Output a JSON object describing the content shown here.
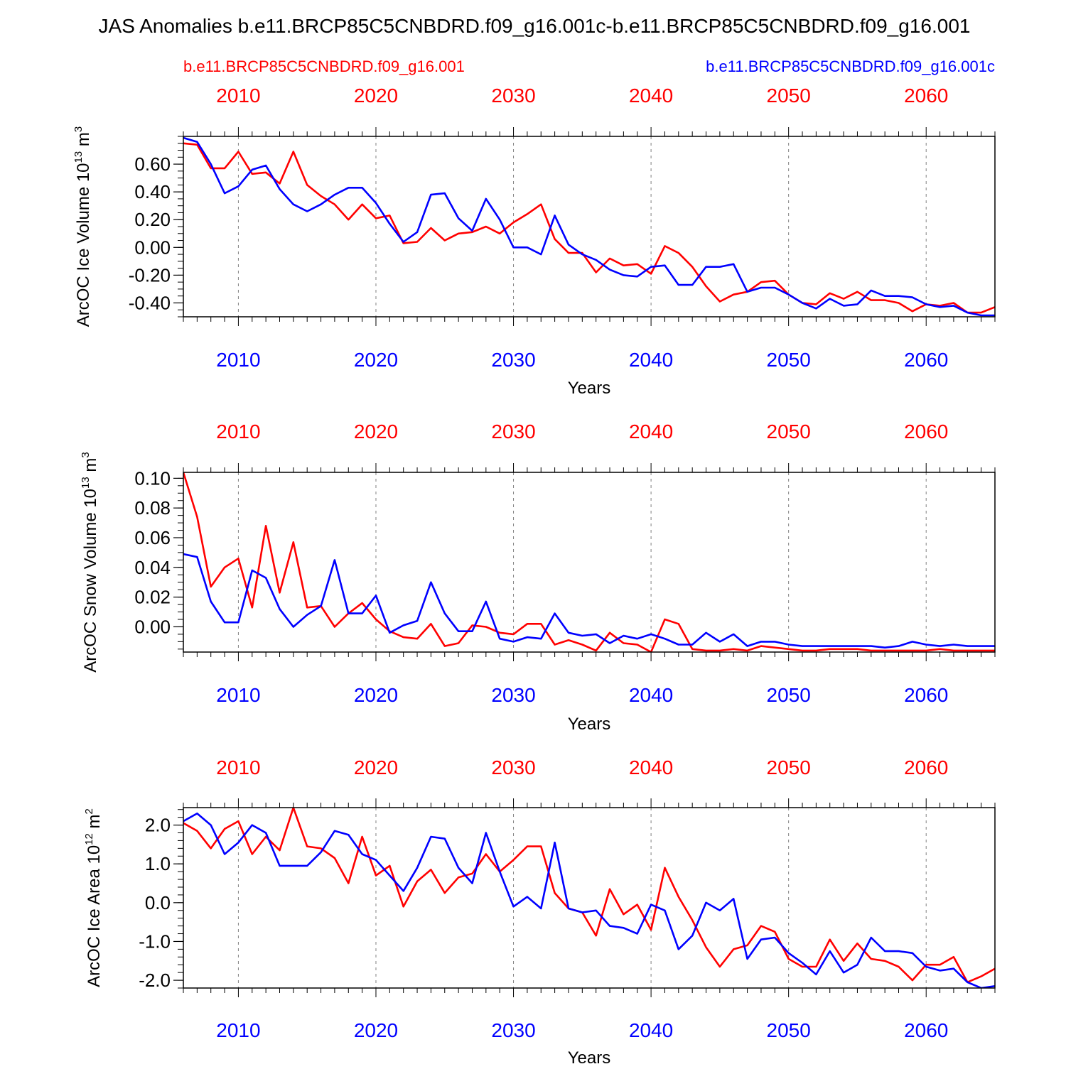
{
  "title": "JAS Anomalies b.e11.BRCP85C5CNBDRD.f09_g16.001c-b.e11.BRCP85C5CNBDRD.f09_g16.001",
  "legend": {
    "left": {
      "label": "b.e11.BRCP85C5CNBDRD.f09_g16.001",
      "color": "#ff0000"
    },
    "right": {
      "label": "b.e11.BRCP85C5CNBDRD.f09_g16.001c",
      "color": "#0000ff"
    }
  },
  "colors": {
    "series_a": "#ff0000",
    "series_b": "#0000ff",
    "axis": "#000000",
    "grid": "#808080"
  },
  "chart_data": [
    {
      "type": "line",
      "ylabel": "ArcOC Ice Volume 10",
      "ylabel_sup": "13",
      "ylabel_unit": " m",
      "ylabel_unit_sup": "3",
      "xlabel": "Years",
      "xlim": [
        2006,
        2065
      ],
      "ylim": [
        -0.5,
        0.8
      ],
      "yticks": [
        -0.4,
        -0.2,
        0.0,
        0.2,
        0.4,
        0.6
      ],
      "ytick_labels": [
        "-0.40",
        "-0.20",
        "0.00",
        "0.20",
        "0.40",
        "0.60"
      ],
      "ytick_minor_step": 0.05,
      "xticks": [
        2010,
        2020,
        2030,
        2040,
        2050,
        2060
      ],
      "xtick_labels": [
        "2010",
        "2020",
        "2030",
        "2040",
        "2050",
        "2060"
      ],
      "x": [
        2006,
        2007,
        2008,
        2009,
        2010,
        2011,
        2012,
        2013,
        2014,
        2015,
        2016,
        2017,
        2018,
        2019,
        2020,
        2021,
        2022,
        2023,
        2024,
        2025,
        2026,
        2027,
        2028,
        2029,
        2030,
        2031,
        2032,
        2033,
        2034,
        2035,
        2036,
        2037,
        2038,
        2039,
        2040,
        2041,
        2042,
        2043,
        2044,
        2045,
        2046,
        2047,
        2048,
        2049,
        2050,
        2051,
        2052,
        2053,
        2054,
        2055,
        2056,
        2057,
        2058,
        2059,
        2060,
        2061,
        2062,
        2063,
        2064,
        2065
      ],
      "series": [
        {
          "name": "b.e11.BRCP85C5CNBDRD.f09_g16.001",
          "color": "#ff0000",
          "values": [
            0.75,
            0.74,
            0.57,
            0.57,
            0.69,
            0.53,
            0.54,
            0.46,
            0.69,
            0.45,
            0.37,
            0.31,
            0.2,
            0.31,
            0.21,
            0.23,
            0.03,
            0.04,
            0.14,
            0.05,
            0.1,
            0.11,
            0.15,
            0.1,
            0.18,
            0.24,
            0.31,
            0.06,
            -0.04,
            -0.04,
            -0.18,
            -0.08,
            -0.13,
            -0.12,
            -0.19,
            0.01,
            -0.04,
            -0.14,
            -0.28,
            -0.39,
            -0.34,
            -0.32,
            -0.25,
            -0.24,
            -0.34,
            -0.4,
            -0.41,
            -0.33,
            -0.37,
            -0.32,
            -0.38,
            -0.38,
            -0.4,
            -0.46,
            -0.41,
            -0.42,
            -0.4,
            -0.47,
            -0.47,
            -0.43
          ]
        },
        {
          "name": "b.e11.BRCP85C5CNBDRD.f09_g16.001c",
          "color": "#0000ff",
          "values": [
            0.79,
            0.76,
            0.6,
            0.39,
            0.44,
            0.56,
            0.59,
            0.42,
            0.31,
            0.26,
            0.31,
            0.38,
            0.43,
            0.43,
            0.32,
            0.17,
            0.04,
            0.11,
            0.38,
            0.39,
            0.21,
            0.12,
            0.35,
            0.2,
            0.0,
            0.0,
            -0.05,
            0.23,
            0.02,
            -0.05,
            -0.09,
            -0.16,
            -0.2,
            -0.21,
            -0.14,
            -0.13,
            -0.27,
            -0.27,
            -0.14,
            -0.14,
            -0.12,
            -0.32,
            -0.29,
            -0.29,
            -0.34,
            -0.4,
            -0.44,
            -0.37,
            -0.42,
            -0.41,
            -0.31,
            -0.35,
            -0.35,
            -0.36,
            -0.41,
            -0.43,
            -0.42,
            -0.47,
            -0.49,
            -0.49
          ]
        }
      ]
    },
    {
      "type": "line",
      "ylabel": "ArcOC Snow Volume 10",
      "ylabel_sup": "13",
      "ylabel_unit": " m",
      "ylabel_unit_sup": "3",
      "xlabel": "Years",
      "xlim": [
        2006,
        2065
      ],
      "ylim": [
        -0.017,
        0.104
      ],
      "yticks": [
        0.0,
        0.02,
        0.04,
        0.06,
        0.08,
        0.1
      ],
      "ytick_labels": [
        "0.00",
        "0.02",
        "0.04",
        "0.06",
        "0.08",
        "0.10"
      ],
      "ytick_minor_step": 0.005,
      "xticks": [
        2010,
        2020,
        2030,
        2040,
        2050,
        2060
      ],
      "xtick_labels": [
        "2010",
        "2020",
        "2030",
        "2040",
        "2050",
        "2060"
      ],
      "x": [
        2006,
        2007,
        2008,
        2009,
        2010,
        2011,
        2012,
        2013,
        2014,
        2015,
        2016,
        2017,
        2018,
        2019,
        2020,
        2021,
        2022,
        2023,
        2024,
        2025,
        2026,
        2027,
        2028,
        2029,
        2030,
        2031,
        2032,
        2033,
        2034,
        2035,
        2036,
        2037,
        2038,
        2039,
        2040,
        2041,
        2042,
        2043,
        2044,
        2045,
        2046,
        2047,
        2048,
        2049,
        2050,
        2051,
        2052,
        2053,
        2054,
        2055,
        2056,
        2057,
        2058,
        2059,
        2060,
        2061,
        2062,
        2063,
        2064,
        2065
      ],
      "series": [
        {
          "name": "b.e11.BRCP85C5CNBDRD.f09_g16.001",
          "color": "#ff0000",
          "values": [
            0.104,
            0.074,
            0.027,
            0.04,
            0.046,
            0.013,
            0.068,
            0.023,
            0.057,
            0.013,
            0.014,
            0.0,
            0.009,
            0.016,
            0.005,
            -0.003,
            -0.007,
            -0.008,
            0.002,
            -0.013,
            -0.011,
            0.001,
            0.0,
            -0.004,
            -0.005,
            0.002,
            0.002,
            -0.012,
            -0.009,
            -0.012,
            -0.016,
            -0.004,
            -0.011,
            -0.012,
            -0.017,
            0.005,
            0.002,
            -0.015,
            -0.016,
            -0.016,
            -0.015,
            -0.016,
            -0.013,
            -0.014,
            -0.015,
            -0.016,
            -0.016,
            -0.015,
            -0.015,
            -0.015,
            -0.016,
            -0.016,
            -0.016,
            -0.016,
            -0.016,
            -0.015,
            -0.016,
            -0.016,
            -0.016,
            -0.016
          ]
        },
        {
          "name": "b.e11.BRCP85C5CNBDRD.f09_g16.001c",
          "color": "#0000ff",
          "values": [
            0.049,
            0.047,
            0.017,
            0.003,
            0.003,
            0.038,
            0.033,
            0.012,
            0.0,
            0.008,
            0.014,
            0.045,
            0.009,
            0.009,
            0.021,
            -0.004,
            0.001,
            0.004,
            0.03,
            0.009,
            -0.003,
            -0.003,
            0.017,
            -0.008,
            -0.01,
            -0.007,
            -0.008,
            0.009,
            -0.004,
            -0.006,
            -0.005,
            -0.011,
            -0.006,
            -0.008,
            -0.005,
            -0.008,
            -0.012,
            -0.012,
            -0.004,
            -0.01,
            -0.005,
            -0.013,
            -0.01,
            -0.01,
            -0.012,
            -0.013,
            -0.013,
            -0.013,
            -0.013,
            -0.013,
            -0.013,
            -0.014,
            -0.013,
            -0.01,
            -0.012,
            -0.013,
            -0.012,
            -0.013,
            -0.013,
            -0.013
          ]
        }
      ]
    },
    {
      "type": "line",
      "ylabel": "ArcOC Ice Area 10",
      "ylabel_sup": "12",
      "ylabel_unit": " m",
      "ylabel_unit_sup": "2",
      "xlabel": "Years",
      "xlim": [
        2006,
        2065
      ],
      "ylim": [
        -2.2,
        2.45
      ],
      "yticks": [
        -2.0,
        -1.0,
        0.0,
        1.0,
        2.0
      ],
      "ytick_labels": [
        "-2.0",
        "-1.0",
        "0.0",
        "1.0",
        "2.0"
      ],
      "ytick_minor_step": 0.2,
      "xticks": [
        2010,
        2020,
        2030,
        2040,
        2050,
        2060
      ],
      "xtick_labels": [
        "2010",
        "2020",
        "2030",
        "2040",
        "2050",
        "2060"
      ],
      "x": [
        2006,
        2007,
        2008,
        2009,
        2010,
        2011,
        2012,
        2013,
        2014,
        2015,
        2016,
        2017,
        2018,
        2019,
        2020,
        2021,
        2022,
        2023,
        2024,
        2025,
        2026,
        2027,
        2028,
        2029,
        2030,
        2031,
        2032,
        2033,
        2034,
        2035,
        2036,
        2037,
        2038,
        2039,
        2040,
        2041,
        2042,
        2043,
        2044,
        2045,
        2046,
        2047,
        2048,
        2049,
        2050,
        2051,
        2052,
        2053,
        2054,
        2055,
        2056,
        2057,
        2058,
        2059,
        2060,
        2061,
        2062,
        2063,
        2064,
        2065
      ],
      "series": [
        {
          "name": "b.e11.BRCP85C5CNBDRD.f09_g16.001",
          "color": "#ff0000",
          "values": [
            2.05,
            1.85,
            1.4,
            1.9,
            2.1,
            1.25,
            1.7,
            1.35,
            2.45,
            1.45,
            1.4,
            1.15,
            0.5,
            1.7,
            0.7,
            0.95,
            -0.1,
            0.55,
            0.85,
            0.25,
            0.65,
            0.75,
            1.25,
            0.8,
            1.1,
            1.45,
            1.45,
            0.25,
            -0.15,
            -0.25,
            -0.85,
            0.35,
            -0.3,
            -0.05,
            -0.7,
            0.9,
            0.15,
            -0.45,
            -1.15,
            -1.65,
            -1.2,
            -1.1,
            -0.6,
            -0.75,
            -1.45,
            -1.65,
            -1.65,
            -0.95,
            -1.5,
            -1.05,
            -1.45,
            -1.5,
            -1.65,
            -2.0,
            -1.6,
            -1.6,
            -1.4,
            -2.05,
            -1.9,
            -1.7
          ]
        },
        {
          "name": "b.e11.BRCP85C5CNBDRD.f09_g16.001c",
          "color": "#0000ff",
          "values": [
            2.1,
            2.3,
            2.0,
            1.25,
            1.55,
            2.0,
            1.8,
            0.95,
            0.95,
            0.95,
            1.3,
            1.85,
            1.75,
            1.25,
            1.1,
            0.7,
            0.3,
            0.9,
            1.7,
            1.65,
            0.9,
            0.5,
            1.8,
            0.8,
            -0.1,
            0.15,
            -0.15,
            1.55,
            -0.15,
            -0.25,
            -0.2,
            -0.6,
            -0.65,
            -0.8,
            -0.05,
            -0.2,
            -1.2,
            -0.85,
            0.0,
            -0.2,
            0.1,
            -1.45,
            -0.95,
            -0.9,
            -1.3,
            -1.55,
            -1.85,
            -1.25,
            -1.8,
            -1.6,
            -0.9,
            -1.25,
            -1.25,
            -1.3,
            -1.65,
            -1.75,
            -1.7,
            -2.05,
            -2.2,
            -2.15
          ]
        }
      ]
    }
  ]
}
